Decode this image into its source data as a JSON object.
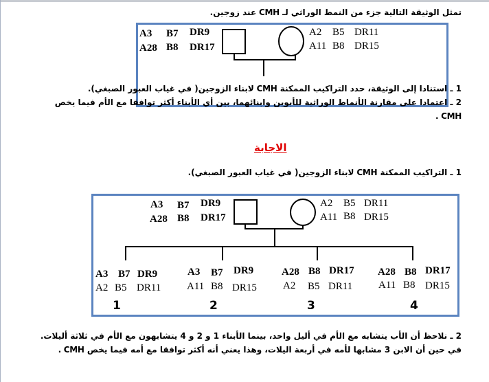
{
  "document": {
    "intro": "تمثل الوثيقة التالية جزء من النمط الوراثي لـ CMH عند زوجين.",
    "question1": "1 ـ استنادا إلى الوثيقة، حدد التراكيب الممكنة CMH لابناء الزوجين( في غياب العبور الصبغي).",
    "question2_line1": "2 ـ اعتمادا على مقارنة الأنماط الوراثية للأبوين وابنائهما، بين أي الأبناء أكثر توافقا مع الأم فيما يخص",
    "question2_line2": "CMH .",
    "answer_heading": "الاجابة",
    "answer1": "1 ـ التراكيب الممكنة CMH لابناء الزوجين( في غياب العبور الصبغي).",
    "answer2_line1": "2 ـ نلاحظ أن الأب يتشابه مع الأم في أليل واحد، بينما الأبناء 1 و 2 و 4 يتشابهون مع الأم في ثلاثة أليلات.",
    "answer2_line2": "في حين أن الابن 3 مشابها لأمه في أربعة اليلات، وهذا يعني أنه أكثر توافقا مع أمه فيما يخص CMH ."
  },
  "father": {
    "row1": [
      "A3",
      "B7",
      "DR9"
    ],
    "row2": [
      "A28",
      "B8",
      "DR17"
    ]
  },
  "mother": {
    "row1": [
      "A2",
      "B5",
      "DR11"
    ],
    "row2": [
      "A11",
      "B8",
      "DR15"
    ]
  },
  "children": [
    {
      "number": "1",
      "row1": [
        "A3",
        "B7",
        "DR9"
      ],
      "row2": [
        "A2",
        "B5",
        "DR11"
      ]
    },
    {
      "number": "2",
      "row1": [
        "A3",
        "B7",
        "DR9"
      ],
      "row2": [
        "A11",
        "B8",
        "DR15"
      ]
    },
    {
      "number": "3",
      "row1": [
        "A28",
        "B8",
        "DR17"
      ],
      "row2": [
        "A2",
        "B5",
        "DR11"
      ]
    },
    {
      "number": "4",
      "row1": [
        "A28",
        "B8",
        "DR17"
      ],
      "row2": [
        "A11",
        "B8",
        "DR15"
      ]
    }
  ],
  "colors": {
    "box_border": "#5b84c0",
    "heading": "#e00000"
  }
}
